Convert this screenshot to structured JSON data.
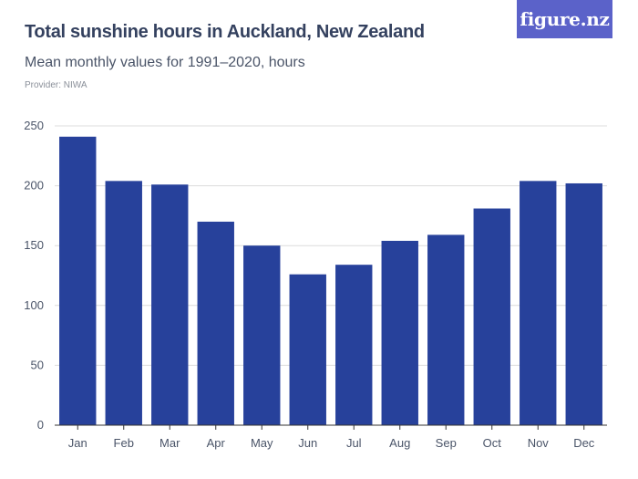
{
  "header": {
    "title": "Total sunshine hours in Auckland, New Zealand",
    "subtitle": "Mean monthly values for 1991–2020, hours",
    "provider": "Provider: NIWA",
    "logo_text": "figure.nz"
  },
  "colors": {
    "bar": "#27419b",
    "grid": "#dcdcdc",
    "axis": "#333333",
    "logo_bg": "#5b62c9"
  },
  "chart_data": {
    "type": "bar",
    "title": "Total sunshine hours in Auckland, New Zealand",
    "subtitle": "Mean monthly values for 1991–2020, hours",
    "xlabel": "",
    "ylabel": "",
    "categories": [
      "Jan",
      "Feb",
      "Mar",
      "Apr",
      "May",
      "Jun",
      "Jul",
      "Aug",
      "Sep",
      "Oct",
      "Nov",
      "Dec"
    ],
    "values": [
      241,
      204,
      201,
      170,
      150,
      126,
      134,
      154,
      159,
      181,
      204,
      202
    ],
    "ylim": [
      0,
      250
    ],
    "yticks": [
      0,
      50,
      100,
      150,
      200,
      250
    ],
    "grid": true,
    "legend": "none"
  }
}
